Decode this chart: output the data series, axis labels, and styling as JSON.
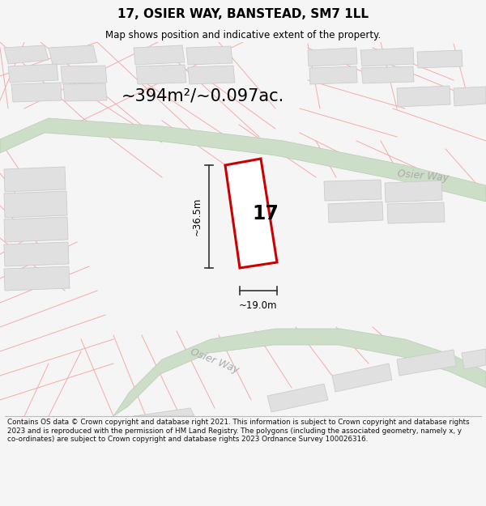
{
  "title": "17, OSIER WAY, BANSTEAD, SM7 1LL",
  "subtitle": "Map shows position and indicative extent of the property.",
  "area_text": "~394m²/~0.097ac.",
  "dim_width": "~19.0m",
  "dim_height": "~36.5m",
  "plot_number": "17",
  "street_label1": "Osier Way",
  "street_label2": "Osier Way",
  "footer": "Contains OS data © Crown copyright and database right 2021. This information is subject to Crown copyright and database rights 2023 and is reproduced with the permission of HM Land Registry. The polygons (including the associated geometry, namely x, y co-ordinates) are subject to Crown copyright and database rights 2023 Ordnance Survey 100026316.",
  "bg_color": "#f5f5f5",
  "map_bg": "#ffffff",
  "road_fill": "#cddec8",
  "road_edge": "#b8ccb3",
  "plot_fill": "#ffffff",
  "plot_stroke": "#cc0000",
  "street_line_color": "#f5aaaa",
  "block_fill": "#e0e0e0",
  "block_stroke": "#cccccc",
  "footer_text_color": "#111111",
  "dim_line_color": "#333333",
  "street_text_color": "#aaaaaa"
}
